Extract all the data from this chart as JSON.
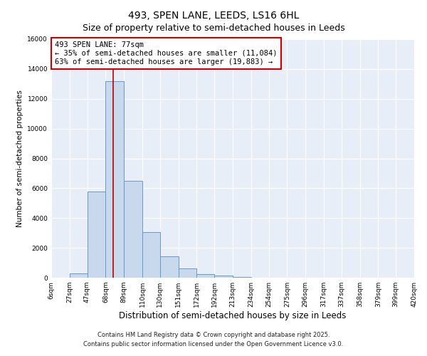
{
  "title": "493, SPEN LANE, LEEDS, LS16 6HL",
  "subtitle": "Size of property relative to semi-detached houses in Leeds",
  "xlabel": "Distribution of semi-detached houses by size in Leeds",
  "ylabel": "Number of semi-detached properties",
  "bar_values": [
    0,
    300,
    5800,
    13200,
    6500,
    3050,
    1450,
    600,
    250,
    150,
    50,
    0,
    0,
    0,
    0,
    0,
    0,
    0,
    0,
    0
  ],
  "bin_edges": [
    6,
    27,
    47,
    68,
    89,
    110,
    130,
    151,
    172,
    192,
    213,
    234,
    254,
    275,
    296,
    317,
    337,
    358,
    379,
    399,
    420
  ],
  "bin_labels": [
    "6sqm",
    "27sqm",
    "47sqm",
    "68sqm",
    "89sqm",
    "110sqm",
    "130sqm",
    "151sqm",
    "172sqm",
    "192sqm",
    "213sqm",
    "234sqm",
    "254sqm",
    "275sqm",
    "296sqm",
    "317sqm",
    "337sqm",
    "358sqm",
    "379sqm",
    "399sqm",
    "420sqm"
  ],
  "bar_color": "#c8d9ee",
  "bar_edge_color": "#6699cc",
  "vline_x": 77,
  "vline_color": "#bb0000",
  "annotation_title": "493 SPEN LANE: 77sqm",
  "annotation_line1": "← 35% of semi-detached houses are smaller (11,084)",
  "annotation_line2": "63% of semi-detached houses are larger (19,883) →",
  "annotation_box_facecolor": "#ffffff",
  "annotation_box_edgecolor": "#cc0000",
  "ylim": [
    0,
    16000
  ],
  "yticks": [
    0,
    2000,
    4000,
    6000,
    8000,
    10000,
    12000,
    14000,
    16000
  ],
  "bg_color": "#ffffff",
  "plot_bg_color": "#e8eef8",
  "grid_color": "#ffffff",
  "footer1": "Contains HM Land Registry data © Crown copyright and database right 2025.",
  "footer2": "Contains public sector information licensed under the Open Government Licence v3.0.",
  "title_fontsize": 10,
  "subtitle_fontsize": 9,
  "xlabel_fontsize": 8.5,
  "ylabel_fontsize": 7.5,
  "tick_fontsize": 6.5,
  "annot_fontsize": 7.5,
  "footer_fontsize": 6
}
